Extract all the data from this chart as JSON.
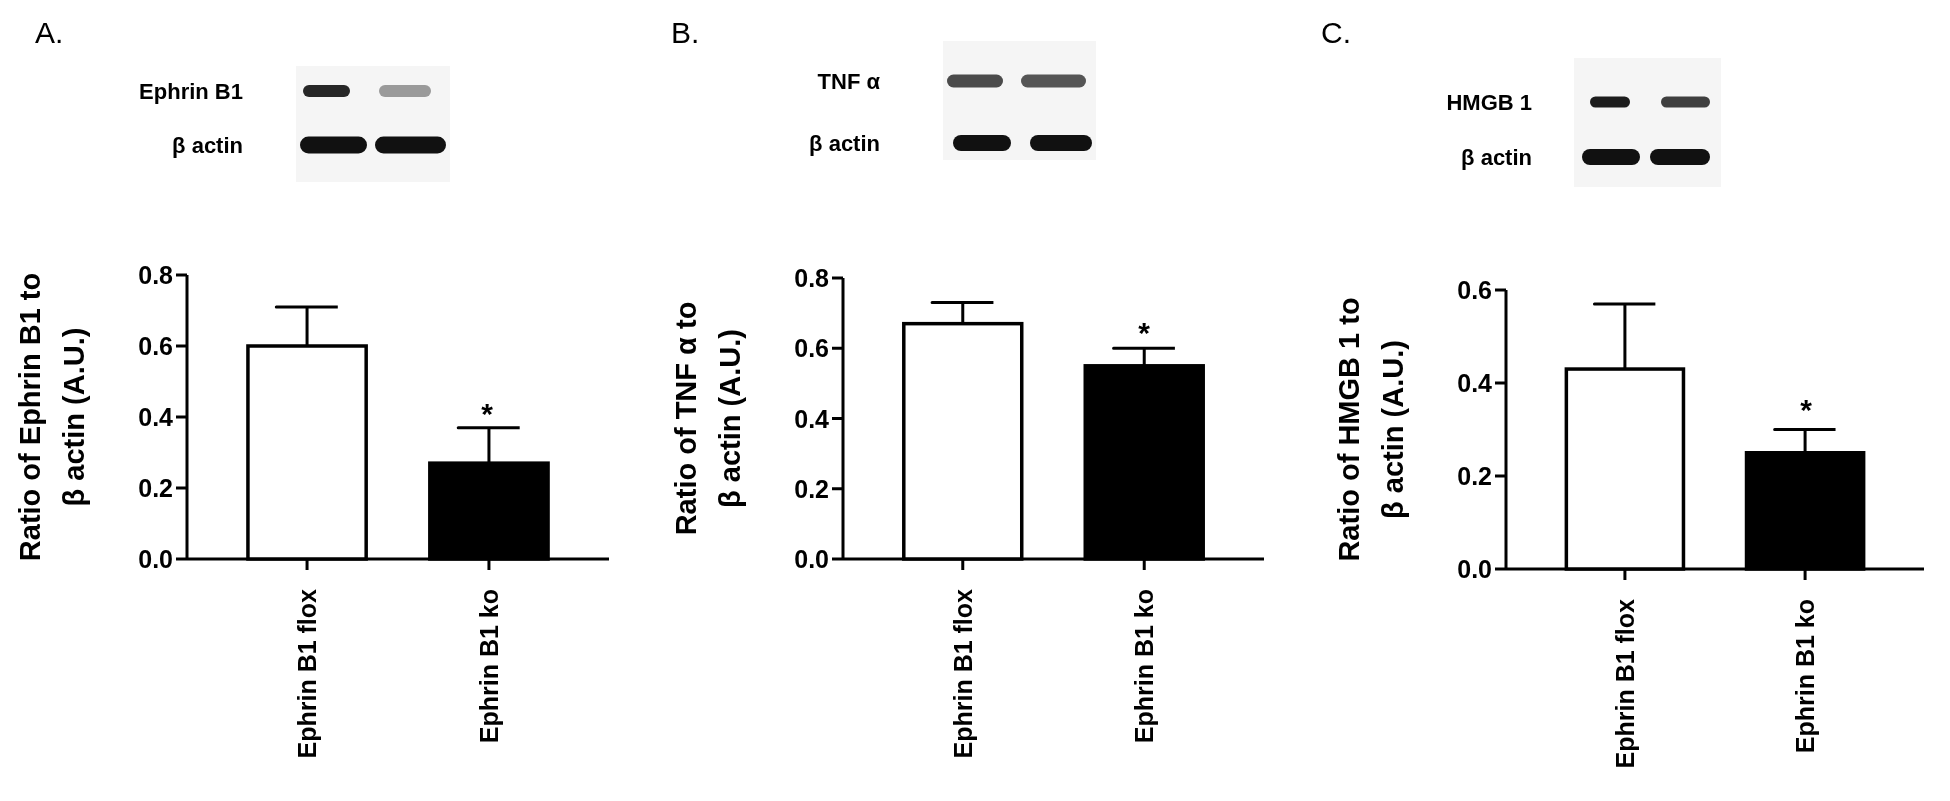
{
  "chart_data": [
    {
      "type": "bar",
      "title": "A.",
      "ylabel": "Ratio of Ephrin B1 to\nβ actin  (A.U.)",
      "categories": [
        "Ephrin B1 flox",
        "Ephrin B1 ko"
      ],
      "values": [
        0.6,
        0.27
      ],
      "colors": [
        "#ffffff",
        "#000000"
      ],
      "errors": [
        [
          0.6,
          0.71
        ],
        [
          0.27,
          0.37
        ]
      ],
      "ylim": [
        0,
        0.8
      ],
      "yticks": [
        {
          "value": 0,
          "label": "0.0"
        },
        {
          "value": 0.2,
          "label": "0.2"
        },
        {
          "value": 0.4,
          "label": "0.4"
        },
        {
          "value": 0.6,
          "label": "0.6"
        },
        {
          "value": 0.8,
          "label": "0.8"
        }
      ],
      "annotations": [
        "Ephrin B1",
        "β actin",
        "*"
      ]
    },
    {
      "type": "bar",
      "title": "B.",
      "ylabel": "Ratio of TNF α to\nβ actin  (A.U.)",
      "categories": [
        "Ephrin B1 flox",
        "Ephrin B1 ko"
      ],
      "values": [
        0.67,
        0.55
      ],
      "colors": [
        "#ffffff",
        "#000000"
      ],
      "errors": [
        [
          0.67,
          0.73
        ],
        [
          0.55,
          0.6
        ]
      ],
      "ylim": [
        0,
        0.8
      ],
      "yticks": [
        {
          "value": 0,
          "label": "0.0"
        },
        {
          "value": 0.2,
          "label": "0.2"
        },
        {
          "value": 0.4,
          "label": "0.4"
        },
        {
          "value": 0.6,
          "label": "0.6"
        },
        {
          "value": 0.8,
          "label": "0.8"
        }
      ],
      "annotations": [
        "TNF α",
        "β actin",
        "*"
      ]
    },
    {
      "type": "bar",
      "title": "C.",
      "ylabel": "Ratio of HMGB 1  to\nβ actin  (A.U.)",
      "categories": [
        "Ephrin B1 flox",
        "Ephrin B1 ko"
      ],
      "values": [
        0.43,
        0.25
      ],
      "colors": [
        "#ffffff",
        "#000000"
      ],
      "errors": [
        [
          0.43,
          0.57
        ],
        [
          0.25,
          0.3
        ]
      ],
      "ylim": [
        0,
        0.6
      ],
      "yticks": [
        {
          "value": 0,
          "label": "0.0"
        },
        {
          "value": 0.2,
          "label": "0.2"
        },
        {
          "value": 0.4,
          "label": "0.4"
        },
        {
          "value": 0.6,
          "label": "0.6"
        }
      ],
      "annotations": [
        "HMGB 1",
        "β actin",
        "*"
      ]
    }
  ]
}
